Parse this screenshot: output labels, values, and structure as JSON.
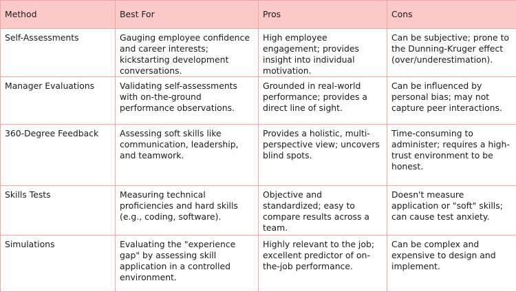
{
  "table": {
    "headers": [
      "Method",
      "Best For",
      "Pros",
      "Cons"
    ],
    "rows": [
      {
        "method": "Self-Assessments",
        "best_for": "Gauging employee confidence and career interests; kickstarting development conversations.",
        "pros": "High employee engagement; provides insight into individual motivation.",
        "cons": "Can be subjective; prone to the Dunning-Kruger effect (over/underestimation)."
      },
      {
        "method": "Manager Evaluations",
        "best_for": "Validating self-assessments with on-the-ground performance observations.",
        "pros": "Grounded in real-world performance; provides a direct line of sight.",
        "cons": "Can be influenced by personal bias; may not capture peer interactions."
      },
      {
        "method": "360-Degree Feedback",
        "best_for": "Assessing soft skills like communication, leadership, and teamwork.",
        "pros": "Provides a holistic, multi-perspective view; uncovers blind spots.",
        "cons": "Time-consuming to administer; requires a high-trust environment to be honest."
      },
      {
        "method": "Skills Tests",
        "best_for": "Measuring technical proficiencies and hard skills (e.g., coding, software).",
        "pros": "Objective and standardized; easy to compare results across a team.",
        "cons": "Doesn't measure application or \"soft\" skills; can cause test anxiety."
      },
      {
        "method": "Simulations",
        "best_for": "Evaluating the \"experience gap\" by assessing skill application in a controlled environment.",
        "pros": "Highly relevant to the job; excellent predictor of on-the-job performance.",
        "cons": "Can be complex and expensive to design and implement."
      }
    ]
  }
}
